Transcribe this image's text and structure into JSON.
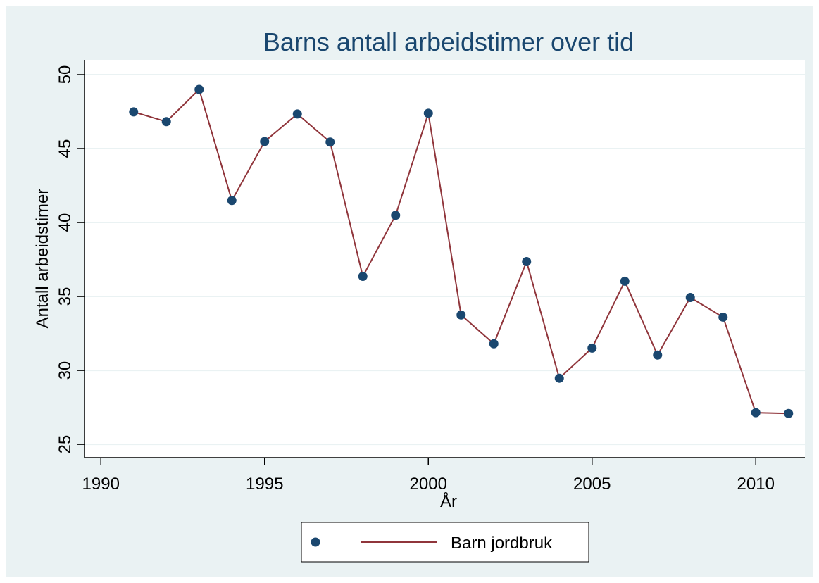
{
  "chart_data": {
    "type": "line",
    "title": "Barns antall arbeidstimer over tid",
    "x_label": "År",
    "y_label": "Antall arbeidstimer",
    "x": [
      1991,
      1992,
      1993,
      1994,
      1995,
      1996,
      1997,
      1998,
      1999,
      2000,
      2001,
      2002,
      2003,
      2004,
      2005,
      2006,
      2007,
      2008,
      2009,
      2010,
      2011
    ],
    "series": [
      {
        "name": "Barn jordbruk",
        "color": "#90353b",
        "marker_color": "#1a476f",
        "values": [
          47.48,
          46.82,
          49.0,
          41.49,
          45.48,
          47.34,
          45.44,
          36.36,
          40.49,
          47.39,
          33.75,
          31.8,
          37.36,
          29.47,
          31.51,
          36.03,
          31.04,
          34.93,
          33.6,
          27.14,
          27.09
        ]
      }
    ],
    "xlim": [
      1989.5,
      2011.5
    ],
    "xticks": [
      1990,
      1995,
      2000,
      2005,
      2010
    ],
    "ylim": [
      24.1,
      51
    ],
    "yticks": [
      25,
      30,
      35,
      40,
      45,
      50
    ],
    "grid": true
  }
}
